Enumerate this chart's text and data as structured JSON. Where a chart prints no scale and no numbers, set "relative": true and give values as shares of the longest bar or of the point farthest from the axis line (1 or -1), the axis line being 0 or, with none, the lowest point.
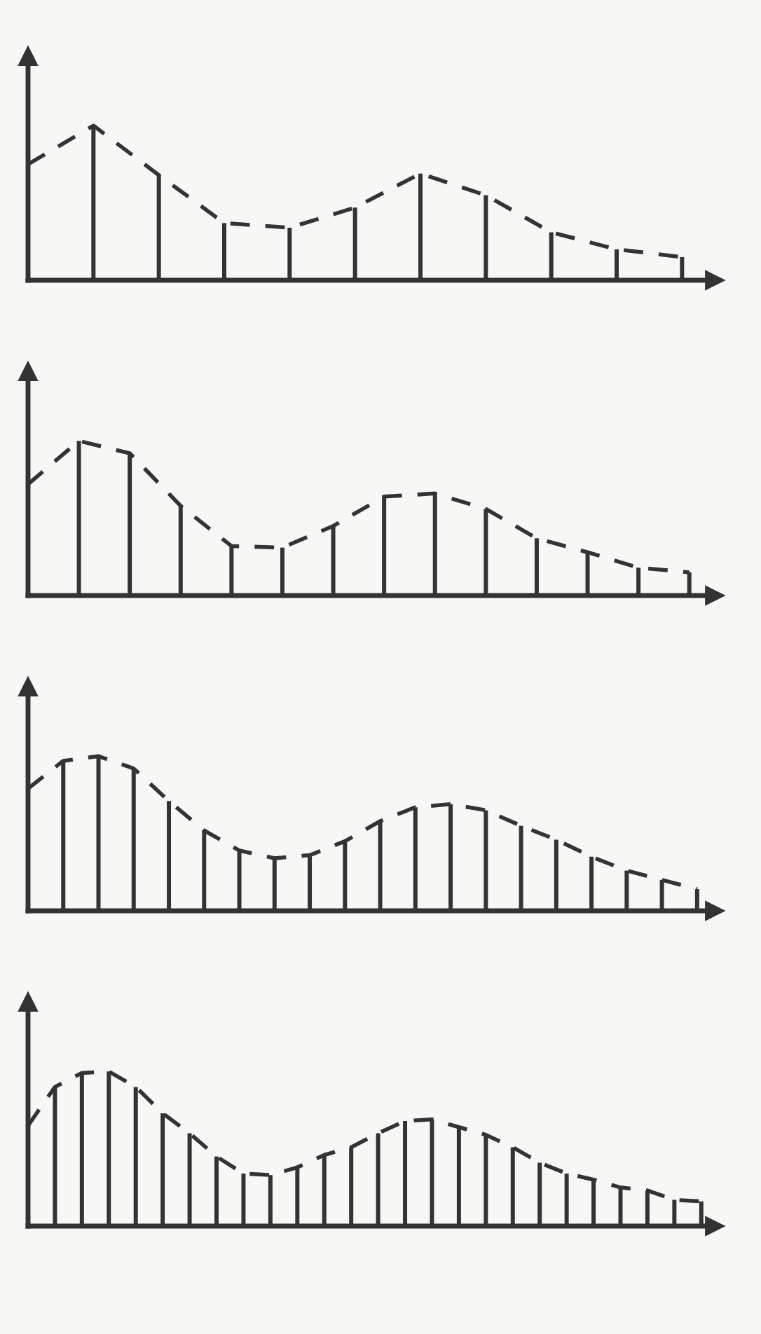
{
  "chart_data": [
    {
      "type": "line",
      "relative": true,
      "line_style": "dashed",
      "color": "#333333",
      "categories": [
        null,
        null,
        null,
        null,
        null,
        null,
        null,
        null,
        null,
        null,
        null
      ],
      "values": [
        0.75,
        1,
        0.68,
        0.37,
        0.34,
        0.47,
        0.69,
        0.55,
        0.31,
        0.2,
        0.15
      ]
    },
    {
      "type": "bar",
      "relative": true,
      "color": "#333333",
      "categories": [
        null,
        null,
        null,
        null,
        null,
        null,
        null,
        null,
        null,
        null
      ],
      "values": [
        1,
        0.68,
        0.37,
        0.34,
        0.47,
        0.69,
        0.55,
        0.31,
        0.2,
        0.15
      ]
    },
    {
      "type": "line",
      "relative": true,
      "line_style": "dashed",
      "color": "#333333",
      "categories": [
        null,
        null,
        null,
        null,
        null,
        null,
        null,
        null,
        null,
        null,
        null,
        null,
        null,
        null
      ],
      "values": [
        0.72,
        1,
        0.92,
        0.58,
        0.32,
        0.31,
        0.45,
        0.64,
        0.66,
        0.56,
        0.37,
        0.28,
        0.18,
        0.15
      ]
    },
    {
      "type": "bar",
      "relative": true,
      "color": "#333333",
      "categories": [
        null,
        null,
        null,
        null,
        null,
        null,
        null,
        null,
        null,
        null,
        null,
        null,
        null
      ],
      "values": [
        1,
        0.92,
        0.58,
        0.32,
        0.31,
        0.45,
        0.64,
        0.66,
        0.56,
        0.37,
        0.28,
        0.18,
        0.15
      ]
    },
    {
      "type": "line",
      "relative": true,
      "line_style": "dashed",
      "color": "#333333",
      "categories": [
        null,
        null,
        null,
        null,
        null,
        null,
        null,
        null,
        null,
        null,
        null,
        null,
        null,
        null,
        null,
        null,
        null,
        null,
        null,
        null
      ],
      "values": [
        0.79,
        0.97,
        1,
        0.92,
        0.71,
        0.52,
        0.39,
        0.34,
        0.36,
        0.45,
        0.58,
        0.67,
        0.69,
        0.65,
        0.55,
        0.46,
        0.35,
        0.26,
        0.2,
        0.14
      ]
    },
    {
      "type": "bar",
      "relative": true,
      "color": "#333333",
      "categories": [
        null,
        null,
        null,
        null,
        null,
        null,
        null,
        null,
        null,
        null,
        null,
        null,
        null,
        null,
        null,
        null,
        null,
        null,
        null
      ],
      "values": [
        0.97,
        1,
        0.92,
        0.71,
        0.52,
        0.39,
        0.34,
        0.36,
        0.45,
        0.58,
        0.67,
        0.69,
        0.65,
        0.55,
        0.46,
        0.35,
        0.26,
        0.2,
        0.14
      ]
    },
    {
      "type": "line",
      "relative": true,
      "line_style": "dashed",
      "color": "#333333",
      "categories": [
        null,
        null,
        null,
        null,
        null,
        null,
        null,
        null,
        null,
        null,
        null,
        null,
        null,
        null,
        null,
        null,
        null,
        null,
        null,
        null,
        null,
        null,
        null,
        null,
        null,
        null
      ],
      "values": [
        0.65,
        0.9,
        0.99,
        1,
        0.9,
        0.73,
        0.6,
        0.45,
        0.34,
        0.33,
        0.38,
        0.46,
        0.51,
        0.6,
        0.68,
        0.69,
        0.64,
        0.59,
        0.51,
        0.41,
        0.34,
        0.3,
        0.25,
        0.23,
        0.17,
        0.16
      ]
    },
    {
      "type": "bar",
      "relative": true,
      "color": "#333333",
      "categories": [
        null,
        null,
        null,
        null,
        null,
        null,
        null,
        null,
        null,
        null,
        null,
        null,
        null,
        null,
        null,
        null,
        null,
        null,
        null,
        null,
        null,
        null,
        null,
        null,
        null
      ],
      "values": [
        0.9,
        0.99,
        1,
        0.9,
        0.73,
        0.6,
        0.45,
        0.34,
        0.33,
        0.38,
        0.46,
        0.51,
        0.6,
        0.68,
        0.69,
        0.64,
        0.59,
        0.51,
        0.41,
        0.34,
        0.3,
        0.25,
        0.23,
        0.17,
        0.16
      ]
    }
  ]
}
